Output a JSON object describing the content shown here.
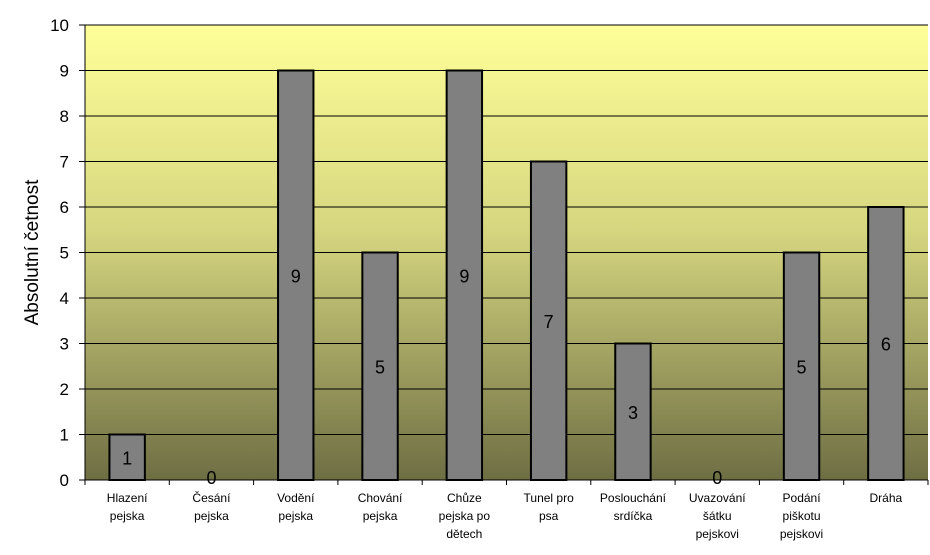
{
  "chart_data": {
    "type": "bar",
    "categories": [
      [
        "Hlazení",
        "pejska"
      ],
      [
        "Česání",
        "pejska"
      ],
      [
        "Vodění",
        "pejska"
      ],
      [
        "Chování",
        "pejska"
      ],
      [
        "Chůze",
        "pejska po",
        "dětech"
      ],
      [
        "Tunel pro",
        "psa"
      ],
      [
        "Poslouchání",
        "srdíčka"
      ],
      [
        "Uvazování",
        "šátku",
        "pejskovi"
      ],
      [
        "Podání",
        "piškotu",
        "pejskovi"
      ],
      [
        "Dráha"
      ]
    ],
    "values": [
      1,
      0,
      9,
      5,
      9,
      7,
      3,
      0,
      5,
      6
    ],
    "data_labels": [
      "1",
      "0",
      "9",
      "5",
      "9",
      "7",
      "3",
      "0",
      "5",
      "6"
    ],
    "ylabel": "Absolutní četnost",
    "xlabel": "",
    "title": "",
    "ylim": [
      0,
      10
    ],
    "yticks": [
      0,
      1,
      2,
      3,
      4,
      5,
      6,
      7,
      8,
      9,
      10
    ],
    "grid": true,
    "legend": "none",
    "colors": {
      "bar_fill": "#808080",
      "bar_stroke": "#000000",
      "plot_bg_top": "#ffff99",
      "plot_bg_bottom": "#6e6e44",
      "gridline": "#000000"
    }
  }
}
